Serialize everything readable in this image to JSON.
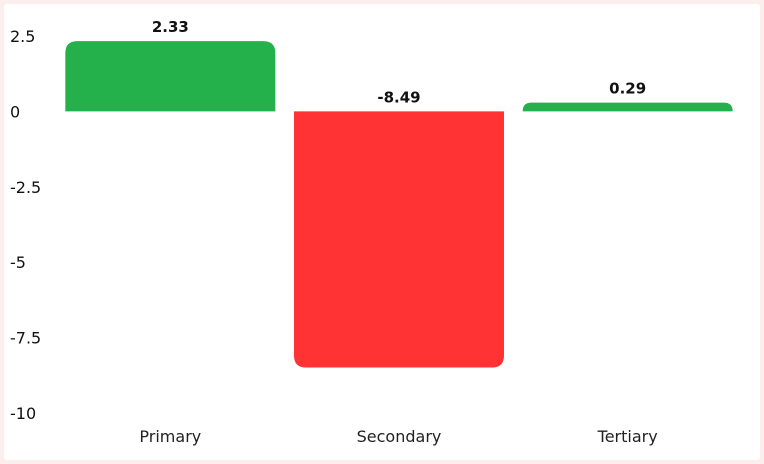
{
  "chart_data": {
    "type": "bar",
    "categories": [
      "Primary",
      "Secondary",
      "Tertiary"
    ],
    "values": [
      2.33,
      -8.49,
      0.29
    ],
    "data_labels": [
      "2.33",
      "-8.49",
      "0.29"
    ],
    "title": "",
    "xlabel": "",
    "ylabel": "",
    "ylim": [
      -10,
      2.5
    ],
    "yticks": [
      2.5,
      0,
      -2.5,
      -5,
      -7.5,
      -10
    ],
    "ytick_labels": [
      "2.5",
      "0",
      "-2.5",
      "-5",
      "-7.5",
      "-10"
    ],
    "grid": false,
    "legend": "none",
    "colors": {
      "positive": "#24b04b",
      "negative": "#ff3333"
    }
  }
}
